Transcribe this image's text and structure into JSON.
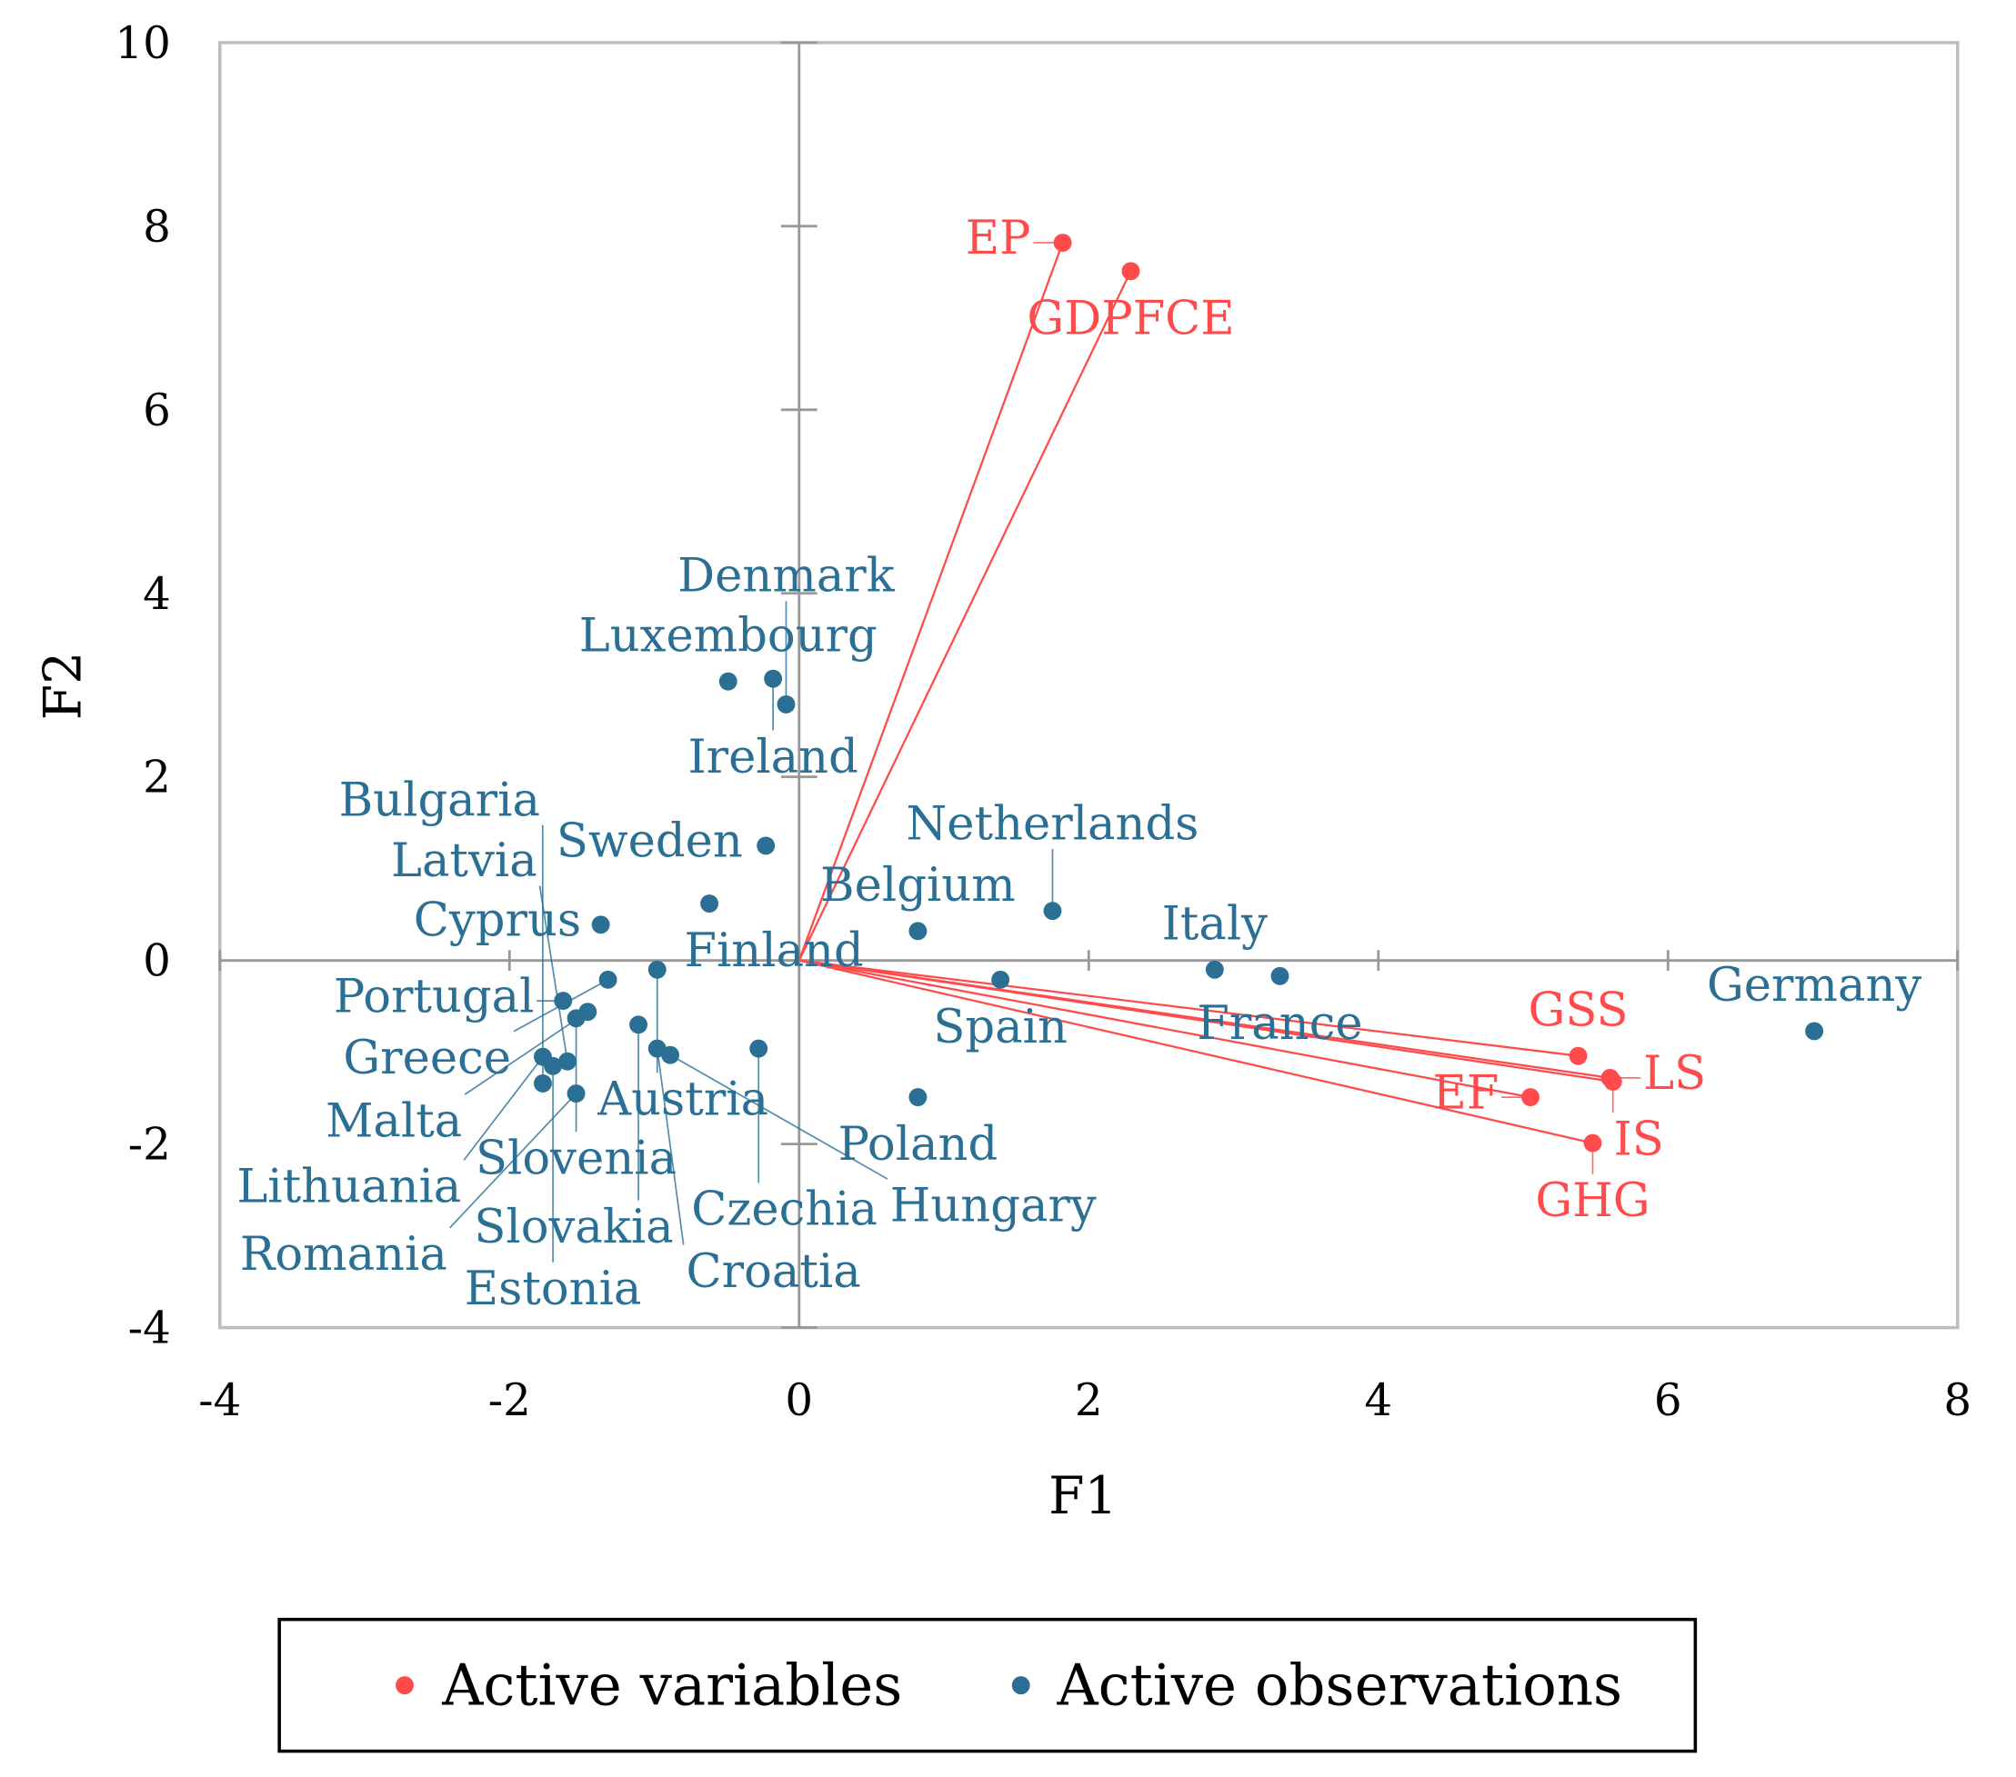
{
  "chart_data": {
    "type": "scatter",
    "title": "",
    "xlabel": "F1",
    "ylabel": "F2",
    "xlim": [
      -4,
      8
    ],
    "ylim": [
      -4,
      10
    ],
    "xticks": [
      "-4",
      "-2",
      "0",
      "2",
      "4",
      "6",
      "8"
    ],
    "yticks": [
      "-4",
      "-2",
      "0",
      "2",
      "4",
      "6",
      "8",
      "10"
    ],
    "grid": false,
    "legend": {
      "placement": "bottom",
      "entries": [
        "Active variables",
        "Active observations"
      ]
    },
    "colors": {
      "variables": "#FF4B4B",
      "observations": "#2B6F94",
      "axis": "#999999"
    },
    "variables": [
      {
        "name": "EP",
        "x": 1.82,
        "y": 7.82
      },
      {
        "name": "GDPFCE",
        "x": 2.29,
        "y": 7.51
      },
      {
        "name": "LS",
        "x": 5.6,
        "y": -1.28
      },
      {
        "name": "IS",
        "x": 5.62,
        "y": -1.32
      },
      {
        "name": "EF",
        "x": 5.05,
        "y": -1.49
      },
      {
        "name": "GSS",
        "x": 5.38,
        "y": -1.04
      },
      {
        "name": "GHG",
        "x": 5.48,
        "y": -1.99
      }
    ],
    "observations": [
      {
        "name": "Luxembourg",
        "x": -0.49,
        "y": 3.04
      },
      {
        "name": "Ireland",
        "x": -0.18,
        "y": 3.07
      },
      {
        "name": "Denmark",
        "x": -0.09,
        "y": 2.79
      },
      {
        "name": "Sweden",
        "x": -0.23,
        "y": 1.25
      },
      {
        "name": "Finland",
        "x": -0.62,
        "y": 0.62
      },
      {
        "name": "Cyprus",
        "x": -1.37,
        "y": 0.39
      },
      {
        "name": "Belgium",
        "x": 0.82,
        "y": 0.32
      },
      {
        "name": "Netherlands",
        "x": 1.75,
        "y": 0.54
      },
      {
        "name": "Spain",
        "x": 1.39,
        "y": -0.21
      },
      {
        "name": "Italy",
        "x": 2.87,
        "y": -0.1
      },
      {
        "name": "France",
        "x": 3.32,
        "y": -0.17
      },
      {
        "name": "Germany",
        "x": 7.01,
        "y": -0.77
      },
      {
        "name": "Poland",
        "x": 0.82,
        "y": -1.49
      },
      {
        "name": "Austria",
        "x": -0.98,
        "y": -0.1
      },
      {
        "name": "Portugal",
        "x": -1.63,
        "y": -0.44
      },
      {
        "name": "Greece",
        "x": -1.32,
        "y": -0.21
      },
      {
        "name": "Slovenia",
        "x": -1.54,
        "y": -0.63
      },
      {
        "name": "Malta",
        "x": -1.46,
        "y": -0.56
      },
      {
        "name": "Czechia",
        "x": -0.28,
        "y": -0.96
      },
      {
        "name": "Slovakia",
        "x": -1.11,
        "y": -0.7
      },
      {
        "name": "Lithuania",
        "x": -1.77,
        "y": -1.05
      },
      {
        "name": "Latvia",
        "x": -1.6,
        "y": -1.1
      },
      {
        "name": "Estonia",
        "x": -1.7,
        "y": -1.15
      },
      {
        "name": "Croatia",
        "x": -0.98,
        "y": -0.96
      },
      {
        "name": "Hungary",
        "x": -0.89,
        "y": -1.03
      },
      {
        "name": "Romania",
        "x": -1.54,
        "y": -1.45
      },
      {
        "name": "Bulgaria",
        "x": -1.77,
        "y": -1.34
      }
    ]
  }
}
